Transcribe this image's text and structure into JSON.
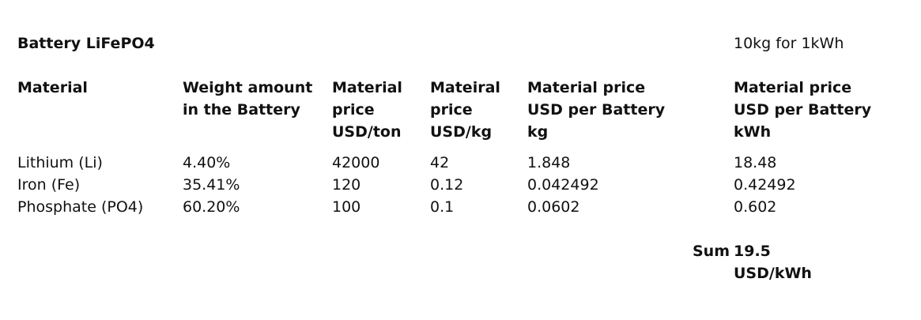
{
  "title": "Battery LiFePO4",
  "note": "10kg for 1kWh",
  "headers": {
    "material": "Material",
    "weight": "Weight amount in the Battery",
    "price_ton": "Material price USD/ton",
    "price_kg": "Mateiral price USD/kg",
    "price_per_battery_kg": "Material price USD per Battery kg",
    "price_per_kwh": "Material price USD per Battery kWh"
  },
  "rows": [
    {
      "material": "Lithium (Li)",
      "weight": "4.40%",
      "price_ton": "42000",
      "price_kg": "42",
      "price_per_battery_kg": "1.848",
      "price_per_kwh": "18.48"
    },
    {
      "material": "Iron (Fe)",
      "weight": "35.41%",
      "price_ton": "120",
      "price_kg": "0.12",
      "price_per_battery_kg": "0.042492",
      "price_per_kwh": "0.42492"
    },
    {
      "material": "Phosphate (PO4)",
      "weight": "60.20%",
      "price_ton": "100",
      "price_kg": "0.1",
      "price_per_battery_kg": "0.0602",
      "price_per_kwh": "0.602"
    }
  ],
  "sum": {
    "label": "Sum",
    "value": "19.5",
    "unit": "USD/kWh"
  }
}
